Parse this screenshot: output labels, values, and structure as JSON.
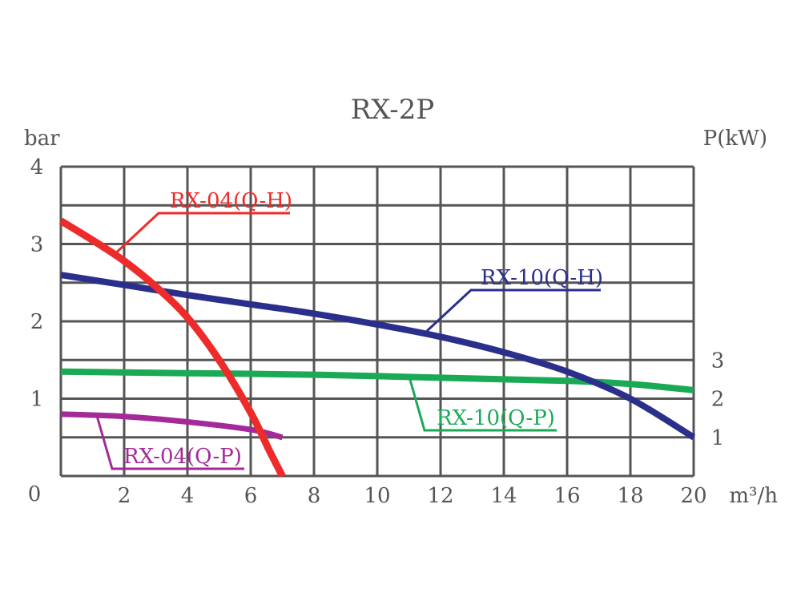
{
  "chart_data": {
    "type": "line",
    "title": "RX-2P",
    "xlabel": "m³/h",
    "ylabel_left": "bar",
    "ylabel_right": "P(kW)",
    "xlim": [
      0,
      20
    ],
    "ylim_left": [
      0,
      4
    ],
    "origin_label": "0",
    "x_ticks": [
      "2",
      "4",
      "6",
      "8",
      "10",
      "12",
      "14",
      "16",
      "18",
      "20"
    ],
    "y_ticks_left": [
      "1",
      "2",
      "3",
      "4"
    ],
    "y_ticks_right": [
      "1",
      "2",
      "3"
    ],
    "y_ticks_right_at": [
      0.5,
      1.0,
      1.5
    ],
    "grid": true,
    "series": [
      {
        "name": "RX-04(Q-H)",
        "axis": "left",
        "color": "#ee2b2b",
        "points": [
          [
            0,
            3.3
          ],
          [
            1,
            3.05
          ],
          [
            2,
            2.78
          ],
          [
            3,
            2.45
          ],
          [
            4,
            2.05
          ],
          [
            5,
            1.5
          ],
          [
            6,
            0.82
          ],
          [
            6.6,
            0.32
          ],
          [
            7,
            0.0
          ]
        ]
      },
      {
        "name": "RX-10(Q-H)",
        "axis": "left",
        "color": "#2b2f8c",
        "points": [
          [
            0,
            2.6
          ],
          [
            2,
            2.47
          ],
          [
            4,
            2.34
          ],
          [
            6,
            2.22
          ],
          [
            8,
            2.1
          ],
          [
            10,
            1.96
          ],
          [
            12,
            1.8
          ],
          [
            14,
            1.6
          ],
          [
            16,
            1.35
          ],
          [
            18,
            1.0
          ],
          [
            20,
            0.5
          ]
        ]
      },
      {
        "name": "RX-10(Q-P)",
        "axis": "right",
        "color": "#1aaa55",
        "points": [
          [
            0,
            1.35
          ],
          [
            4,
            1.33
          ],
          [
            8,
            1.31
          ],
          [
            12,
            1.27
          ],
          [
            16,
            1.23
          ],
          [
            18,
            1.19
          ],
          [
            20,
            1.11
          ]
        ]
      },
      {
        "name": "RX-04(Q-P)",
        "axis": "right",
        "color": "#a32a98",
        "points": [
          [
            0,
            0.8
          ],
          [
            2,
            0.77
          ],
          [
            4,
            0.7
          ],
          [
            6,
            0.6
          ],
          [
            7,
            0.5
          ]
        ]
      }
    ]
  }
}
